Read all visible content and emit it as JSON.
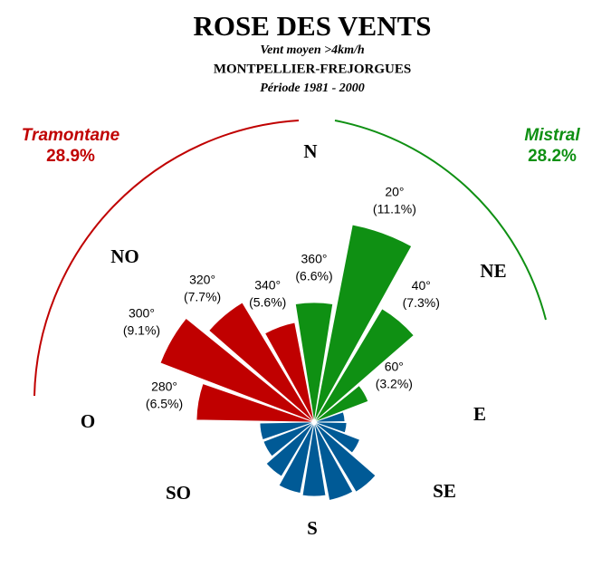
{
  "chart_data": {
    "type": "rose",
    "title": "ROSE DES VENTS",
    "subtitle": "Vent moyen >4km/h",
    "station": "MONTPELLIER-FREJORGUES",
    "period": "Période 1981 - 2000",
    "categories": [
      "20°",
      "40°",
      "60°",
      null,
      null,
      null,
      null,
      null,
      null,
      null,
      null,
      null,
      null,
      "280°",
      "300°",
      "320°",
      "340°",
      "360°"
    ],
    "values": [
      11.1,
      7.3,
      3.2,
      1.7,
      1.8,
      2.7,
      4.5,
      4.4,
      4.1,
      4.0,
      3.5,
      3.0,
      3.0,
      6.5,
      9.1,
      7.7,
      5.6,
      6.6
    ],
    "value_labels": [
      "(11.1%)",
      "(7.3%)",
      "(3.2%)",
      null,
      null,
      null,
      null,
      null,
      null,
      null,
      null,
      null,
      null,
      "(6.5%)",
      "(9.1%)",
      "(7.7%)",
      "(5.6%)",
      "(6.6%)"
    ],
    "colors": [
      "#0f9013",
      "#0f9013",
      "#0f9013",
      "#005a96",
      "#005a96",
      "#005a96",
      "#005a96",
      "#005a96",
      "#005a96",
      "#005a96",
      "#005a96",
      "#005a96",
      "#005a96",
      "#c00000",
      "#c00000",
      "#c00000",
      "#c00000",
      "#0f9013"
    ],
    "compass": [
      "N",
      "NE",
      "E",
      "SE",
      "S",
      "SO",
      "O",
      "NO"
    ],
    "annotations": [
      {
        "name": "Tramontane",
        "share": "28.9%",
        "color": "#c00000"
      },
      {
        "name": "Mistral",
        "share": "28.2%",
        "color": "#0f9013"
      }
    ]
  }
}
